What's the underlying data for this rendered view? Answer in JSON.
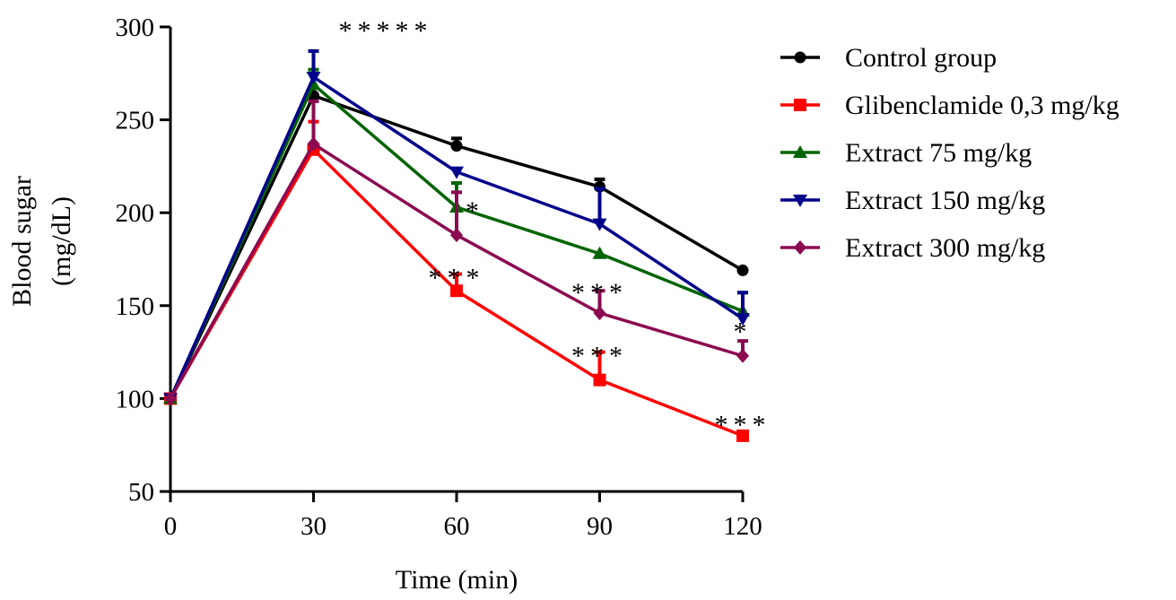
{
  "chart_data": {
    "type": "line",
    "title": "",
    "xlabel": "Time (min)",
    "ylabel": [
      "Blood sugar",
      "(mg/dL)"
    ],
    "xlim": [
      0,
      120
    ],
    "ylim": [
      50,
      300
    ],
    "x": [
      0,
      30,
      60,
      90,
      120
    ],
    "xticks": [
      "0",
      "30",
      "60",
      "90",
      "120"
    ],
    "yticks": [
      "50",
      "100",
      "150",
      "200",
      "250",
      "300"
    ],
    "grid": false,
    "legend_position": "right",
    "series": [
      {
        "name": "Control group",
        "color": "#000000",
        "marker": "circle",
        "values": [
          100,
          263,
          236,
          214,
          169
        ],
        "errors": [
          0,
          0,
          4,
          4,
          0
        ]
      },
      {
        "name": "Glibenclamide 0,3 mg/kg",
        "color": "#ff0000",
        "marker": "square",
        "values": [
          100,
          234,
          158,
          110,
          80
        ],
        "errors": [
          0,
          15,
          9,
          15,
          0
        ]
      },
      {
        "name": "Extract 75 mg/kg",
        "color": "#006400",
        "marker": "triangle-up",
        "values": [
          100,
          269,
          203,
          178,
          147
        ],
        "errors": [
          0,
          8,
          13,
          0,
          10
        ]
      },
      {
        "name": "Extract 150 mg/kg",
        "color": "#00008b",
        "marker": "triangle-down",
        "values": [
          100,
          273,
          222,
          194,
          143
        ],
        "errors": [
          0,
          14,
          0,
          19,
          14
        ]
      },
      {
        "name": "Extract 300 mg/kg",
        "color": "#8b0a50",
        "marker": "diamond",
        "values": [
          100,
          237,
          188,
          146,
          123
        ],
        "errors": [
          0,
          23,
          23,
          12,
          8
        ]
      }
    ],
    "annotations": [
      {
        "text": "*****",
        "x": 30,
        "y": 300,
        "color": "#555555"
      },
      {
        "text": "*",
        "x": 60,
        "y": 203,
        "color": "#000000"
      },
      {
        "text": "***",
        "x": 60,
        "y": 167,
        "color": "#000000"
      },
      {
        "text": "***",
        "x": 90,
        "y": 159,
        "color": "#000000"
      },
      {
        "text": "***",
        "x": 90,
        "y": 125,
        "color": "#000000"
      },
      {
        "text": "*",
        "x": 120,
        "y": 138,
        "color": "#000000"
      },
      {
        "text": "***",
        "x": 120,
        "y": 88,
        "color": "#000000"
      }
    ]
  }
}
